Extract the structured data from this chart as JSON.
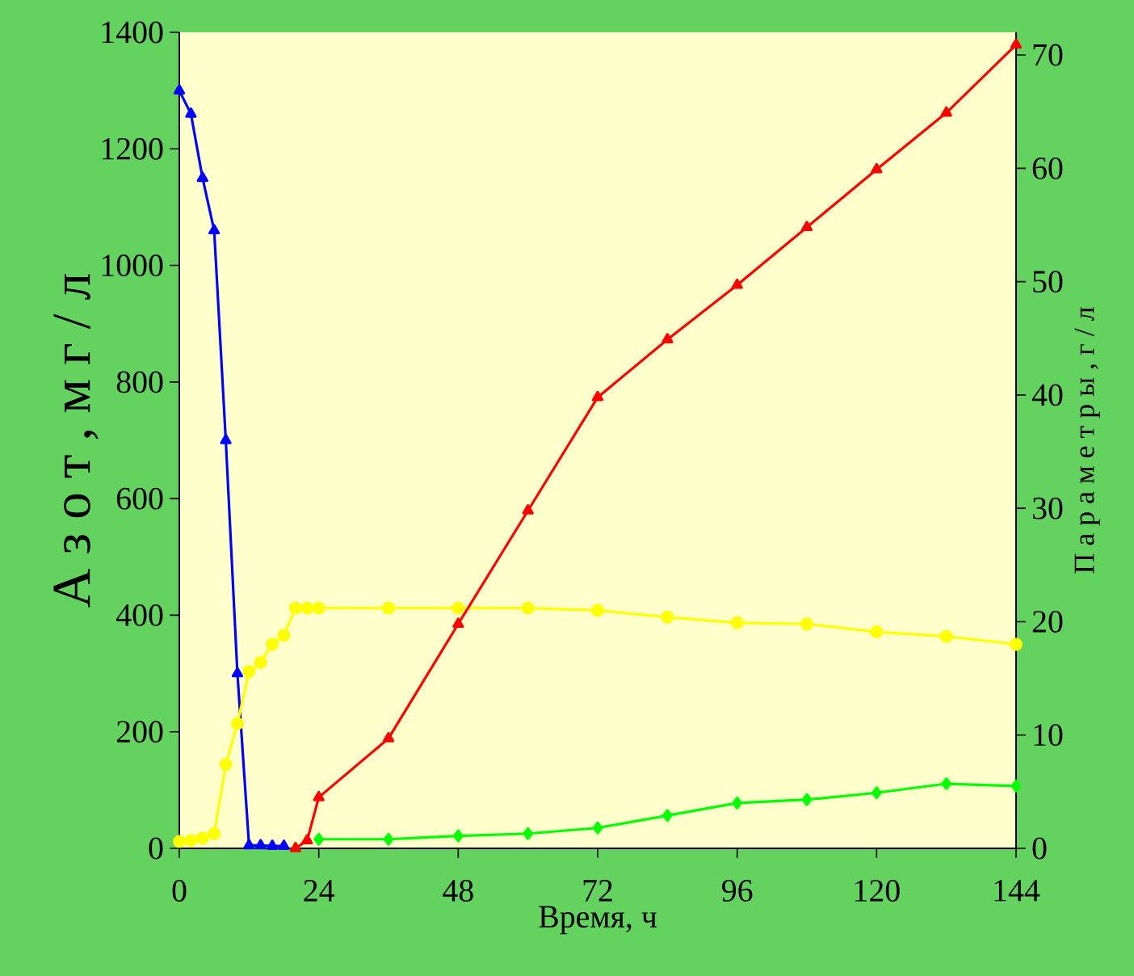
{
  "chart_data": {
    "type": "line",
    "xlabel": "Время, ч",
    "ylabel": "А з о т ,   м г / л",
    "y2label": "П а р а м е т р ы ,   г / л",
    "xlim": [
      0,
      144
    ],
    "xticks": [
      0,
      24,
      48,
      72,
      96,
      120,
      144
    ],
    "ylim": [
      0,
      1400
    ],
    "yticks": [
      0,
      200,
      400,
      600,
      800,
      1000,
      1200,
      1400
    ],
    "y2lim": [
      0,
      72
    ],
    "y2ticks": [
      0,
      10,
      20,
      30,
      40,
      50,
      60,
      70
    ],
    "series": [
      {
        "color": "#0000ff",
        "marker": "triangle",
        "x": [
          0,
          2,
          4,
          6,
          8,
          10,
          12,
          14,
          16,
          18
        ],
        "values": [
          1300,
          1260,
          1150,
          1060,
          700,
          300,
          5,
          5,
          4,
          4
        ]
      },
      {
        "color": "#ffff00",
        "marker": "circle",
        "axis": "y2",
        "x": [
          0,
          2,
          4,
          6,
          8,
          10,
          12,
          14,
          16,
          18,
          20,
          22,
          24,
          36,
          48,
          60,
          72,
          84,
          96,
          108,
          120,
          132,
          144
        ],
        "values": [
          0.6,
          0.7,
          0.9,
          1.3,
          7.4,
          11.0,
          15.6,
          16.4,
          18.0,
          18.8,
          21.2,
          21.2,
          21.2,
          21.2,
          21.2,
          21.2,
          21.0,
          20.4,
          19.9,
          19.8,
          19.1,
          18.7,
          18.0
        ]
      },
      {
        "color": "#ff0000",
        "marker": "triangle",
        "axis": "y2",
        "x": [
          20,
          22,
          24,
          36,
          48,
          60,
          72,
          84,
          96,
          108,
          120,
          132,
          144
        ],
        "values": [
          0,
          0.7,
          4.5,
          9.7,
          19.8,
          29.8,
          39.8,
          44.9,
          49.7,
          54.8,
          59.9,
          64.9,
          70.9
        ]
      },
      {
        "color": "#00ff00",
        "marker": "diamond",
        "axis": "y2",
        "x": [
          24,
          36,
          48,
          60,
          72,
          84,
          96,
          108,
          120,
          132,
          144
        ],
        "values": [
          0.8,
          0.8,
          1.1,
          1.3,
          1.8,
          2.9,
          4.0,
          4.3,
          4.9,
          5.7,
          5.5
        ]
      }
    ]
  }
}
